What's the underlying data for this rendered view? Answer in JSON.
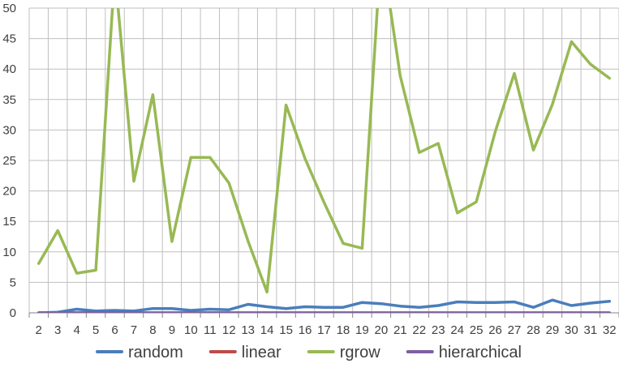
{
  "chart_data": {
    "type": "line",
    "title": "",
    "xlabel": "",
    "ylabel": "",
    "ylim": [
      0,
      50
    ],
    "ytick_step": 5,
    "yticks": [
      "0",
      "5",
      "10",
      "15",
      "20",
      "25",
      "30",
      "35",
      "40",
      "45",
      "50"
    ],
    "grid": true,
    "legend_position": "bottom",
    "categories": [
      "2",
      "3",
      "4",
      "5",
      "6",
      "7",
      "8",
      "9",
      "10",
      "11",
      "12",
      "13",
      "14",
      "15",
      "16",
      "17",
      "18",
      "19",
      "20",
      "21",
      "22",
      "23",
      "24",
      "25",
      "26",
      "27",
      "28",
      "29",
      "30",
      "31",
      "32"
    ],
    "series": [
      {
        "name": "random",
        "color": "#4a7ebb",
        "values": [
          0,
          0.1,
          0.6,
          0.3,
          0.4,
          0.3,
          0.7,
          0.7,
          0.4,
          0.6,
          0.5,
          1.4,
          1.0,
          0.7,
          1.0,
          0.9,
          0.9,
          1.7,
          1.5,
          1.1,
          0.9,
          1.2,
          1.8,
          1.7,
          1.7,
          1.8,
          0.9,
          2.1,
          1.2,
          1.6,
          1.9
        ]
      },
      {
        "name": "linear",
        "color": "#be4b48",
        "values": [
          0,
          0,
          0,
          0,
          0,
          0,
          0,
          0,
          0,
          0,
          0,
          0,
          0,
          0,
          0,
          0,
          0,
          0,
          0,
          0,
          0,
          0,
          0,
          0,
          0,
          0,
          0,
          0,
          0,
          0,
          0
        ]
      },
      {
        "name": "rgrow",
        "color": "#98b954",
        "values": [
          8.1,
          13.5,
          6.5,
          7.0,
          56,
          21.6,
          35.8,
          11.7,
          25.5,
          25.5,
          21.3,
          11.8,
          3.4,
          34.1,
          25.3,
          18.1,
          11.4,
          10.6,
          60,
          38.9,
          26.3,
          27.8,
          16.4,
          18.2,
          29.8,
          39.3,
          26.7,
          34.2,
          44.5,
          40.8,
          38.5
        ]
      },
      {
        "name": "hierarchical",
        "color": "#7d60a0",
        "values": [
          0,
          0,
          0,
          0,
          0,
          0,
          0,
          0,
          0,
          0,
          0,
          0,
          0,
          0,
          0,
          0,
          0,
          0,
          0,
          0,
          0,
          0,
          0,
          0,
          0,
          0,
          0,
          0,
          0,
          0,
          0
        ]
      }
    ]
  }
}
